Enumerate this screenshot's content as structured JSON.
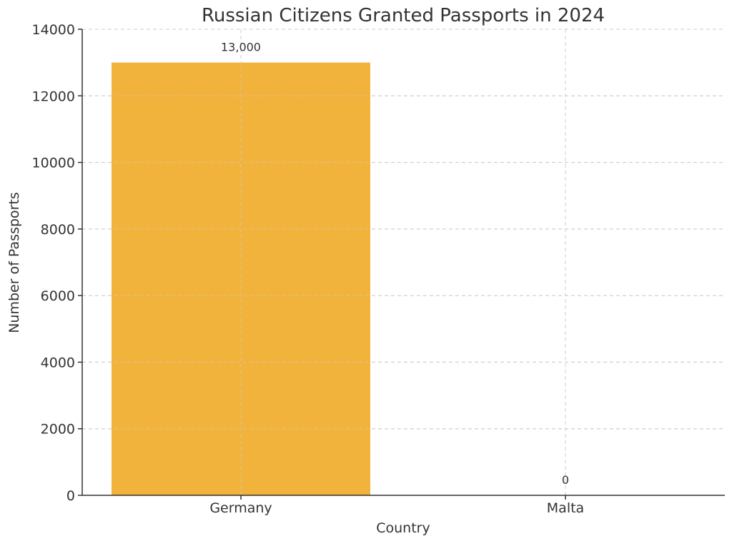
{
  "chart_data": {
    "type": "bar",
    "title": "Russian Citizens Granted Passports in 2024",
    "xlabel": "Country",
    "ylabel": "Number of Passports",
    "categories": [
      "Germany",
      "Malta"
    ],
    "values": [
      13000,
      0
    ],
    "data_labels": [
      "13,000",
      "0"
    ],
    "ylim": [
      0,
      14000
    ],
    "yticks": [
      0,
      2000,
      4000,
      6000,
      8000,
      10000,
      12000,
      14000
    ],
    "ytick_labels": [
      "0",
      "2000",
      "4000",
      "6000",
      "8000",
      "10000",
      "12000",
      "14000"
    ],
    "grid": true,
    "bar_color": "#f2b33d"
  }
}
